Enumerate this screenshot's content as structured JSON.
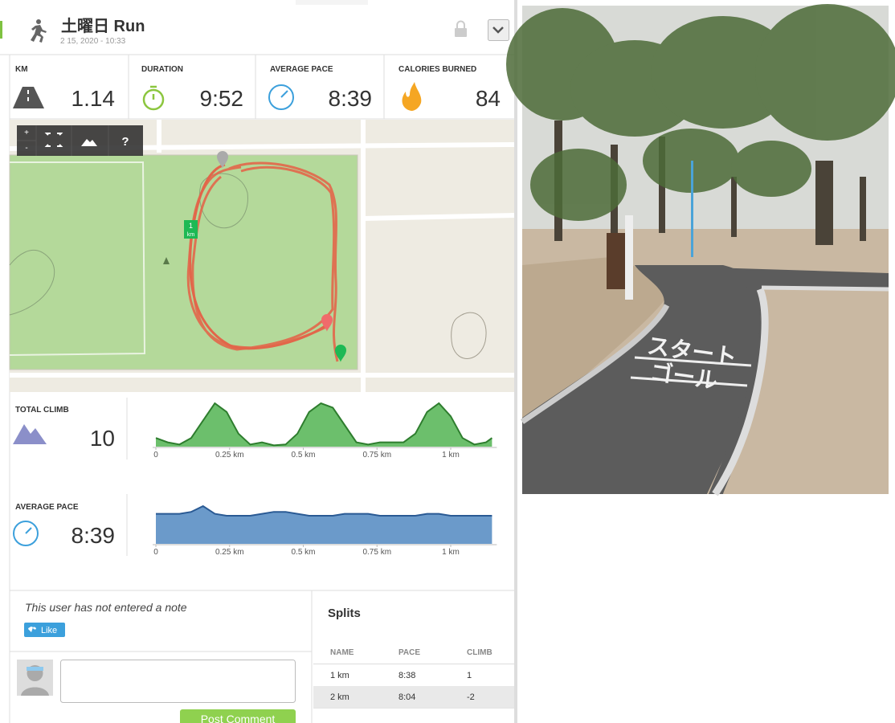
{
  "header": {
    "title": "土曜日 Run",
    "datetime": "2 15, 2020  -  10:33"
  },
  "stats": [
    {
      "label": "KM",
      "value": "1.14"
    },
    {
      "label": "DURATION",
      "value": "9:52"
    },
    {
      "label": "AVERAGE PACE",
      "value": "8:39"
    },
    {
      "label": "CALORIES BURNED",
      "value": "84"
    }
  ],
  "map": {
    "controls": [
      "+",
      "-",
      "?"
    ],
    "marker": [
      "1",
      "km"
    ]
  },
  "climb_chart": {
    "type": "area",
    "label": "TOTAL CLIMB",
    "total": "10",
    "color": "#5cb85c",
    "x": [
      0,
      0.04,
      0.08,
      0.12,
      0.16,
      0.2,
      0.24,
      0.28,
      0.32,
      0.36,
      0.4,
      0.44,
      0.48,
      0.52,
      0.56,
      0.6,
      0.64,
      0.68,
      0.72,
      0.76,
      0.8,
      0.84,
      0.88,
      0.92,
      0.96,
      1.0,
      1.04,
      1.08,
      1.12,
      1.14
    ],
    "values": [
      2,
      1,
      0.5,
      2,
      6,
      10,
      8,
      3,
      0.5,
      1,
      0.3,
      0.5,
      3,
      8,
      10,
      9,
      5,
      1,
      0.5,
      1,
      1,
      1,
      3,
      8,
      10,
      7,
      2,
      0.5,
      1,
      2
    ],
    "xticks": [
      0,
      {
        "value": 0.25,
        "label": "0.25 km"
      },
      {
        "value": 0.5,
        "label": "0.5 km"
      },
      {
        "value": 0.75,
        "label": "0.75 km"
      },
      {
        "value": 1,
        "label": "1 km"
      }
    ]
  },
  "pace_chart": {
    "type": "area",
    "label": "AVERAGE PACE",
    "average": "8:39",
    "color": "#5b8fc4",
    "x": [
      0,
      0.04,
      0.08,
      0.12,
      0.16,
      0.2,
      0.24,
      0.28,
      0.32,
      0.36,
      0.4,
      0.44,
      0.48,
      0.52,
      0.56,
      0.6,
      0.64,
      0.68,
      0.72,
      0.76,
      0.8,
      0.84,
      0.88,
      0.92,
      0.96,
      1.0,
      1.04,
      1.08,
      1.12,
      1.14
    ],
    "values": [
      8.5,
      8.5,
      8.5,
      8.6,
      8.9,
      8.5,
      8.4,
      8.4,
      8.4,
      8.5,
      8.6,
      8.6,
      8.5,
      8.4,
      8.4,
      8.4,
      8.5,
      8.5,
      8.5,
      8.4,
      8.4,
      8.4,
      8.4,
      8.5,
      8.5,
      8.4,
      8.4,
      8.4,
      8.4,
      8.4
    ],
    "xticks": [
      0,
      {
        "value": 0.25,
        "label": "0.25 km"
      },
      {
        "value": 0.5,
        "label": "0.5 km"
      },
      {
        "value": 0.75,
        "label": "0.75 km"
      },
      {
        "value": 1,
        "label": "1 km"
      }
    ]
  },
  "note": {
    "text": "This user has not entered a note",
    "like": "Like"
  },
  "comment": {
    "button": "Post Comment"
  },
  "splits": {
    "title": "Splits",
    "columns": [
      "NAME",
      "PACE",
      "CLIMB"
    ],
    "rows": [
      [
        "1 km",
        "8:38",
        "1"
      ],
      [
        "2 km",
        "8:04",
        "-2"
      ]
    ]
  },
  "photo": {
    "road_text": [
      "スタート",
      "ゴール"
    ]
  }
}
